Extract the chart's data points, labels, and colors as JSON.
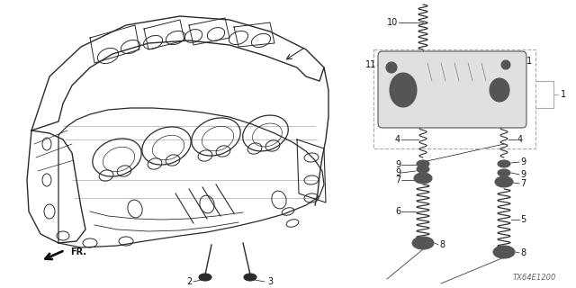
{
  "bg_color": "#ffffff",
  "fig_width": 6.4,
  "fig_height": 3.2,
  "diagram_code": "TX64E1200",
  "engine_color": "#2a2a2a",
  "line_color": "#444444",
  "text_color": "#111111",
  "dashed_color": "#aaaaaa",
  "spring_color": "#333333",
  "part_color": "#555555",
  "part_fill": "#888888"
}
